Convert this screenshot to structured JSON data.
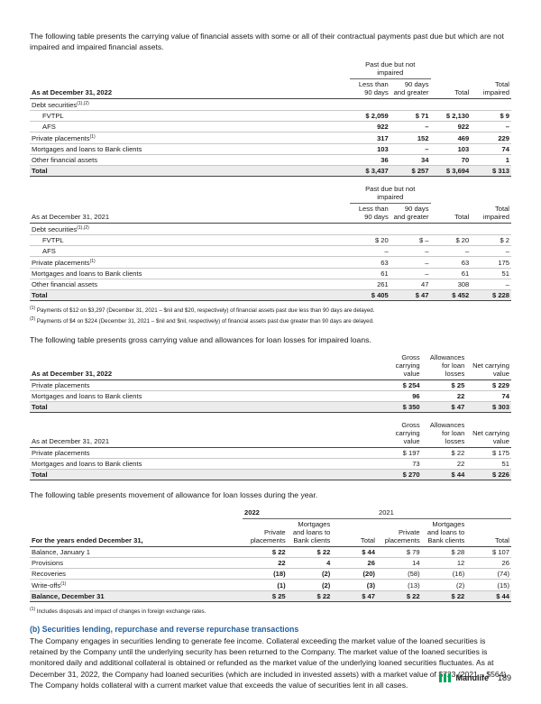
{
  "intro1": "The following table presents the carrying value of financial assets with some or all of their contractual payments past due but which are not impaired and impaired financial assets.",
  "tables": [
    {
      "group_header": "Past due but not impaired",
      "headers": [
        "As at December 31, 2022",
        "Less than 90 days",
        "90 days and greater",
        "Total",
        "Total impaired"
      ],
      "rows": [
        {
          "label": "Debt securities",
          "note": "(1),(2)"
        },
        {
          "label": "FVTPL",
          "cells": [
            "$ 2,059",
            "$ 71",
            "$ 2,130",
            "$ 9"
          ]
        },
        {
          "label": "AFS",
          "cells": [
            "922",
            "–",
            "922",
            "–"
          ]
        },
        {
          "label": "Private placements",
          "note": "(1)",
          "cells": [
            "317",
            "152",
            "469",
            "229"
          ]
        },
        {
          "label": "Mortgages and loans to Bank clients",
          "cells": [
            "103",
            "–",
            "103",
            "74"
          ]
        },
        {
          "label": "Other financial assets",
          "cells": [
            "36",
            "34",
            "70",
            "1"
          ]
        },
        {
          "label": "Total",
          "cells": [
            "$ 3,437",
            "$ 257",
            "$ 3,694",
            "$ 313"
          ]
        }
      ]
    },
    {
      "group_header": "Past due but not impaired",
      "headers": [
        "As at December 31, 2021",
        "Less than 90 days",
        "90 days and greater",
        "Total",
        "Total impaired"
      ],
      "rows": [
        {
          "label": "Debt securities",
          "note": "(1),(2)"
        },
        {
          "label": "FVTPL",
          "cells": [
            "$ 20",
            "$ –",
            "$ 20",
            "$ 2"
          ]
        },
        {
          "label": "AFS",
          "cells": [
            "–",
            "–",
            "–",
            "–"
          ]
        },
        {
          "label": "Private placements",
          "note": "(1)",
          "cells": [
            "63",
            "–",
            "63",
            "175"
          ]
        },
        {
          "label": "Mortgages and loans to Bank clients",
          "cells": [
            "61",
            "–",
            "61",
            "51"
          ]
        },
        {
          "label": "Other financial assets",
          "cells": [
            "261",
            "47",
            "308",
            "–"
          ]
        },
        {
          "label": "Total",
          "cells": [
            "$ 405",
            "$ 47",
            "$ 452",
            "$ 228"
          ]
        }
      ]
    },
    {
      "headers": [
        "As at December 31, 2022",
        "Gross carrying value",
        "Allowances for loan losses",
        "Net carrying value"
      ],
      "rows": [
        {
          "label": "Private placements",
          "cells": [
            "$ 254",
            "$ 25",
            "$ 229"
          ]
        },
        {
          "label": "Mortgages and loans to Bank clients",
          "cells": [
            "96",
            "22",
            "74"
          ]
        },
        {
          "label": "Total",
          "cells": [
            "$ 350",
            "$ 47",
            "$ 303"
          ]
        }
      ]
    },
    {
      "headers": [
        "As at December 31, 2021",
        "Gross carrying value",
        "Allowances for loan losses",
        "Net carrying value"
      ],
      "rows": [
        {
          "label": "Private placements",
          "cells": [
            "$ 197",
            "$ 22",
            "$ 175"
          ]
        },
        {
          "label": "Mortgages and loans to Bank clients",
          "cells": [
            "73",
            "22",
            "51"
          ]
        },
        {
          "label": "Total",
          "cells": [
            "$ 270",
            "$ 44",
            "$ 226"
          ]
        }
      ]
    },
    {
      "groups": [
        "2022",
        "2021"
      ],
      "headers": [
        "For the years ended December 31,",
        "Private placements",
        "Mortgages and loans to Bank clients",
        "Total",
        "Private placements",
        "Mortgages and loans to Bank clients",
        "Total"
      ],
      "rows": [
        {
          "label": "Balance, January 1",
          "cells": [
            "$ 22",
            "$ 22",
            "$ 44",
            "$ 79",
            "$ 28",
            "$ 107"
          ]
        },
        {
          "label": "Provisions",
          "cells": [
            "22",
            "4",
            "26",
            "14",
            "12",
            "26"
          ]
        },
        {
          "label": "Recoveries",
          "cells": [
            "(18)",
            "(2)",
            "(20)",
            "(58)",
            "(16)",
            "(74)"
          ]
        },
        {
          "label": "Write-offs",
          "note": "(1)",
          "cells": [
            "(1)",
            "(2)",
            "(3)",
            "(13)",
            "(2)",
            "(15)"
          ]
        },
        {
          "label": "Balance, December 31",
          "cells": [
            "$ 25",
            "$ 22",
            "$ 47",
            "$ 22",
            "$ 22",
            "$ 44"
          ]
        }
      ]
    }
  ],
  "notes1": [
    {
      "marker": "(1)",
      "text": "Payments of $12 on $3,297 (December 31, 2021 – $nil and $20, respectively) of financial assets past due less than 90 days are delayed."
    },
    {
      "marker": "(2)",
      "text": "Payments of $4 on $224 (December 31, 2021 – $nil and $nil, respectively) of financial assets past due greater than 90 days are delayed."
    }
  ],
  "intro2": "The following table presents gross carrying value and allowances for loan losses for impaired loans.",
  "intro3": "The following table presents movement of allowance for loan losses during the year.",
  "notes2": [
    {
      "marker": "(1)",
      "text": "Includes disposals and impact of changes in foreign exchange rates."
    }
  ],
  "section": {
    "heading": "(b) Securities lending, repurchase and reverse repurchase transactions",
    "body": "The Company engages in securities lending to generate fee income. Collateral exceeding the market value of the loaned securities is retained by the Company until the underlying security has been returned to the Company. The market value of the loaned securities is monitored daily and additional collateral is obtained or refunded as the market value of the underlying loaned securities fluctuates. As at December 31, 2022, the Company had loaned securities (which are included in invested assets) with a market value of $723 (2021 – $564). The Company holds collateral with a current market value that exceeds the value of securities lent in all cases."
  },
  "footer": {
    "brand": "Manulife",
    "page": "189"
  }
}
